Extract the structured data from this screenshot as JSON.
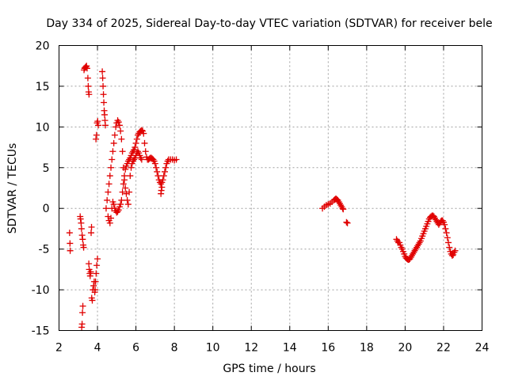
{
  "chart_data": {
    "type": "scatter",
    "title": "Day 334 of 2025, Sidereal Day-to-day VTEC variation (SDTVAR) for receiver bele",
    "xlabel": "GPS time / hours",
    "ylabel": "SDTVAR / TECUs",
    "xlim": [
      2,
      24
    ],
    "ylim": [
      -15,
      20
    ],
    "xticks": [
      2,
      4,
      6,
      8,
      10,
      12,
      14,
      16,
      18,
      20,
      22,
      24
    ],
    "yticks": [
      -15,
      -10,
      -5,
      0,
      5,
      10,
      15,
      20
    ],
    "xtick_labels": [
      "2",
      "4",
      "6",
      "8",
      "10",
      "12",
      "14",
      "16",
      "18",
      "20",
      "22",
      "24"
    ],
    "ytick_labels": [
      "-15",
      "-10",
      "-5",
      "0",
      "5",
      "10",
      "15",
      "20"
    ],
    "grid": true,
    "marker": "+",
    "color": "#e00000",
    "series": [
      {
        "name": "SDTVAR",
        "points": [
          [
            2.55,
            -3.0
          ],
          [
            2.57,
            -4.3
          ],
          [
            2.58,
            -5.2
          ],
          [
            3.1,
            -1.0
          ],
          [
            3.12,
            -1.3
          ],
          [
            3.15,
            -1.8
          ],
          [
            3.17,
            -2.5
          ],
          [
            3.2,
            -3.3
          ],
          [
            3.23,
            -3.8
          ],
          [
            3.26,
            -4.5
          ],
          [
            3.28,
            -4.8
          ],
          [
            3.18,
            -14.6
          ],
          [
            3.2,
            -14.2
          ],
          [
            3.22,
            -12.8
          ],
          [
            3.24,
            -12.0
          ],
          [
            3.3,
            17.0
          ],
          [
            3.33,
            17.2
          ],
          [
            3.36,
            17.3
          ],
          [
            3.4,
            17.4
          ],
          [
            3.43,
            17.5
          ],
          [
            3.46,
            17.2
          ],
          [
            3.5,
            16.0
          ],
          [
            3.52,
            15.0
          ],
          [
            3.54,
            14.3
          ],
          [
            3.56,
            14.0
          ],
          [
            3.55,
            -6.8
          ],
          [
            3.57,
            -7.5
          ],
          [
            3.6,
            -8.0
          ],
          [
            3.62,
            -8.3
          ],
          [
            3.65,
            -7.8
          ],
          [
            3.67,
            -3.0
          ],
          [
            3.69,
            -2.3
          ],
          [
            3.7,
            -11.0
          ],
          [
            3.73,
            -11.3
          ],
          [
            3.76,
            -10.0
          ],
          [
            3.8,
            -9.5
          ],
          [
            3.83,
            -9.0
          ],
          [
            3.86,
            -10.3
          ],
          [
            3.88,
            -10.0
          ],
          [
            3.9,
            -9.0
          ],
          [
            3.93,
            -8.0
          ],
          [
            3.96,
            -7.0
          ],
          [
            4.0,
            -6.2
          ],
          [
            3.92,
            8.5
          ],
          [
            3.95,
            9.0
          ],
          [
            3.98,
            10.5
          ],
          [
            4.01,
            10.7
          ],
          [
            4.04,
            10.2
          ],
          [
            4.25,
            16.8
          ],
          [
            4.27,
            16.0
          ],
          [
            4.29,
            15.0
          ],
          [
            4.31,
            14.0
          ],
          [
            4.33,
            13.0
          ],
          [
            4.35,
            12.0
          ],
          [
            4.37,
            11.5
          ],
          [
            4.39,
            10.8
          ],
          [
            4.41,
            10.2
          ],
          [
            4.45,
            0.0
          ],
          [
            4.5,
            1.0
          ],
          [
            4.55,
            2.0
          ],
          [
            4.6,
            3.0
          ],
          [
            4.65,
            4.0
          ],
          [
            4.7,
            5.0
          ],
          [
            4.75,
            6.0
          ],
          [
            4.8,
            7.0
          ],
          [
            4.85,
            8.0
          ],
          [
            4.9,
            9.0
          ],
          [
            4.95,
            10.0
          ],
          [
            5.0,
            10.5
          ],
          [
            5.05,
            10.8
          ],
          [
            5.1,
            10.6
          ],
          [
            5.15,
            10.2
          ],
          [
            5.2,
            9.5
          ],
          [
            5.25,
            8.5
          ],
          [
            5.3,
            7.0
          ],
          [
            5.35,
            5.0
          ],
          [
            5.4,
            3.5
          ],
          [
            5.45,
            2.5
          ],
          [
            5.5,
            1.8
          ],
          [
            5.55,
            1.0
          ],
          [
            5.6,
            0.5
          ],
          [
            5.65,
            2.0
          ],
          [
            5.7,
            4.0
          ],
          [
            5.75,
            5.0
          ],
          [
            4.55,
            -1.0
          ],
          [
            4.6,
            -1.5
          ],
          [
            4.65,
            -1.8
          ],
          [
            4.7,
            -1.2
          ],
          [
            4.75,
            0.0
          ],
          [
            4.8,
            0.8
          ],
          [
            4.85,
            0.5
          ],
          [
            4.9,
            0.0
          ],
          [
            4.95,
            -0.3
          ],
          [
            5.0,
            -0.5
          ],
          [
            5.05,
            -0.4
          ],
          [
            5.1,
            -0.2
          ],
          [
            5.15,
            0.2
          ],
          [
            5.2,
            0.5
          ],
          [
            5.25,
            1.0
          ],
          [
            5.3,
            2.0
          ],
          [
            5.35,
            3.0
          ],
          [
            5.4,
            4.0
          ],
          [
            5.45,
            4.8
          ],
          [
            5.5,
            5.2
          ],
          [
            5.55,
            5.5
          ],
          [
            5.6,
            5.8
          ],
          [
            5.65,
            6.0
          ],
          [
            5.7,
            6.2
          ],
          [
            5.75,
            6.5
          ],
          [
            5.8,
            6.8
          ],
          [
            5.85,
            7.0
          ],
          [
            5.9,
            7.2
          ],
          [
            5.95,
            7.5
          ],
          [
            6.0,
            8.0
          ],
          [
            6.05,
            8.5
          ],
          [
            6.1,
            9.0
          ],
          [
            6.15,
            9.2
          ],
          [
            6.2,
            9.4
          ],
          [
            6.25,
            9.5
          ],
          [
            6.3,
            9.6
          ],
          [
            6.35,
            9.5
          ],
          [
            6.4,
            9.2
          ],
          [
            6.45,
            8.0
          ],
          [
            6.5,
            7.0
          ],
          [
            6.55,
            6.3
          ],
          [
            6.6,
            6.0
          ],
          [
            6.65,
            6.0
          ],
          [
            6.7,
            6.1
          ],
          [
            6.75,
            6.2
          ],
          [
            6.8,
            6.2
          ],
          [
            6.85,
            6.1
          ],
          [
            6.9,
            6.0
          ],
          [
            6.95,
            5.8
          ],
          [
            7.0,
            5.5
          ],
          [
            7.05,
            5.0
          ],
          [
            7.1,
            4.5
          ],
          [
            7.15,
            4.0
          ],
          [
            7.2,
            3.5
          ],
          [
            7.25,
            3.2
          ],
          [
            7.3,
            3.0
          ],
          [
            7.35,
            3.2
          ],
          [
            7.4,
            3.5
          ],
          [
            7.45,
            4.0
          ],
          [
            7.5,
            4.5
          ],
          [
            7.55,
            5.0
          ],
          [
            7.6,
            5.5
          ],
          [
            7.65,
            5.8
          ],
          [
            7.7,
            6.0
          ],
          [
            7.8,
            6.0
          ],
          [
            7.9,
            6.0
          ],
          [
            8.0,
            5.9
          ],
          [
            8.1,
            6.0
          ],
          [
            5.8,
            5.5
          ],
          [
            5.85,
            5.8
          ],
          [
            5.9,
            6.0
          ],
          [
            5.95,
            6.2
          ],
          [
            6.0,
            6.5
          ],
          [
            6.05,
            6.8
          ],
          [
            6.1,
            7.0
          ],
          [
            6.15,
            6.8
          ],
          [
            6.2,
            6.5
          ],
          [
            6.25,
            6.2
          ],
          [
            6.3,
            6.0
          ],
          [
            7.3,
            1.8
          ],
          [
            7.32,
            2.2
          ],
          [
            7.35,
            2.6
          ],
          [
            15.7,
            0.0
          ],
          [
            15.8,
            0.2
          ],
          [
            15.9,
            0.4
          ],
          [
            16.0,
            0.5
          ],
          [
            16.1,
            0.6
          ],
          [
            16.2,
            0.8
          ],
          [
            16.3,
            1.0
          ],
          [
            16.35,
            1.1
          ],
          [
            16.4,
            1.2
          ],
          [
            16.45,
            1.1
          ],
          [
            16.5,
            1.0
          ],
          [
            16.55,
            0.8
          ],
          [
            16.6,
            0.6
          ],
          [
            16.65,
            0.4
          ],
          [
            16.7,
            0.2
          ],
          [
            16.75,
            0.0
          ],
          [
            16.78,
            -0.1
          ],
          [
            16.95,
            -1.7
          ],
          [
            17.0,
            -1.8
          ],
          [
            19.55,
            -3.8
          ],
          [
            19.6,
            -4.0
          ],
          [
            19.65,
            -4.2
          ],
          [
            19.7,
            -4.2
          ],
          [
            19.75,
            -4.5
          ],
          [
            19.8,
            -4.8
          ],
          [
            19.85,
            -5.0
          ],
          [
            19.9,
            -5.3
          ],
          [
            19.95,
            -5.6
          ],
          [
            20.0,
            -5.9
          ],
          [
            20.05,
            -6.1
          ],
          [
            20.1,
            -6.2
          ],
          [
            20.15,
            -6.3
          ],
          [
            20.2,
            -6.3
          ],
          [
            20.25,
            -6.2
          ],
          [
            20.3,
            -6.0
          ],
          [
            20.35,
            -5.8
          ],
          [
            20.4,
            -5.6
          ],
          [
            20.45,
            -5.4
          ],
          [
            20.5,
            -5.2
          ],
          [
            20.55,
            -5.0
          ],
          [
            20.6,
            -4.8
          ],
          [
            20.65,
            -4.6
          ],
          [
            20.7,
            -4.4
          ],
          [
            20.75,
            -4.2
          ],
          [
            20.8,
            -4.0
          ],
          [
            20.85,
            -3.7
          ],
          [
            20.9,
            -3.4
          ],
          [
            20.95,
            -3.1
          ],
          [
            21.0,
            -2.8
          ],
          [
            21.05,
            -2.5
          ],
          [
            21.1,
            -2.2
          ],
          [
            21.15,
            -1.9
          ],
          [
            21.2,
            -1.6
          ],
          [
            21.25,
            -1.3
          ],
          [
            21.3,
            -1.1
          ],
          [
            21.35,
            -1.0
          ],
          [
            21.4,
            -0.9
          ],
          [
            21.45,
            -0.9
          ],
          [
            21.5,
            -1.0
          ],
          [
            21.55,
            -1.2
          ],
          [
            21.6,
            -1.4
          ],
          [
            21.65,
            -1.6
          ],
          [
            21.7,
            -1.8
          ],
          [
            21.75,
            -2.0
          ],
          [
            21.8,
            -1.8
          ],
          [
            21.85,
            -1.6
          ],
          [
            21.9,
            -1.5
          ],
          [
            21.95,
            -1.5
          ],
          [
            22.0,
            -1.7
          ],
          [
            22.05,
            -2.0
          ],
          [
            22.1,
            -2.5
          ],
          [
            22.15,
            -3.0
          ],
          [
            22.2,
            -3.6
          ],
          [
            22.25,
            -4.2
          ],
          [
            22.3,
            -4.8
          ],
          [
            22.35,
            -5.3
          ],
          [
            22.4,
            -5.6
          ],
          [
            22.45,
            -5.8
          ],
          [
            22.5,
            -5.7
          ],
          [
            22.55,
            -5.4
          ],
          [
            22.6,
            -5.2
          ]
        ]
      }
    ]
  }
}
